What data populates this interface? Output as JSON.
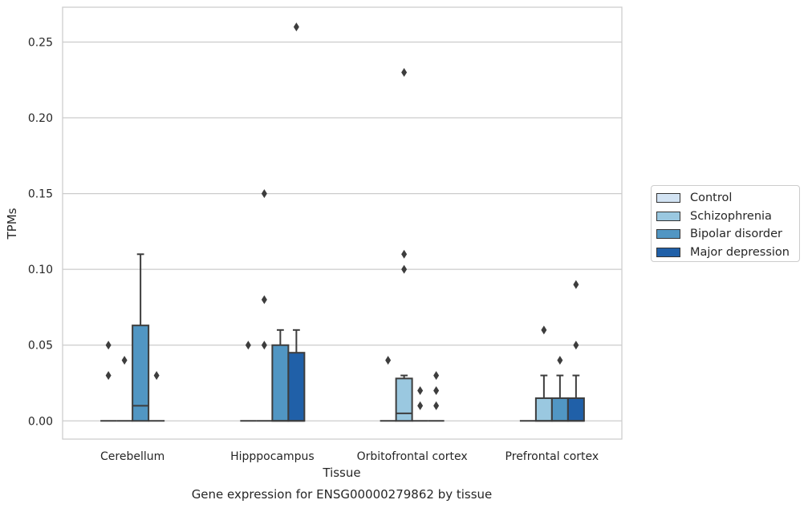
{
  "chart_data": {
    "type": "boxplot",
    "title": "Gene expression for ENSG00000279862 by tissue",
    "xlabel": "Tissue",
    "ylabel": "TPMs",
    "ylim": [
      -0.012,
      0.273
    ],
    "yticks": [
      "0.00",
      "0.05",
      "0.10",
      "0.15",
      "0.20",
      "0.25"
    ],
    "grid": "horizontal",
    "legend_position": "right",
    "categories": [
      "Cerebellum",
      "Hipppocampus",
      "Orbitofrontal cortex",
      "Prefrontal cortex"
    ],
    "series": [
      {
        "name": "Control",
        "color": "#d2e3f3",
        "boxes": [
          {
            "q1": 0,
            "median": 0,
            "q3": 0,
            "whisker_low": 0,
            "whisker_high": 0,
            "outliers": [
              0.03,
              0.05
            ]
          },
          {
            "q1": 0,
            "median": 0,
            "q3": 0,
            "whisker_low": 0,
            "whisker_high": 0,
            "outliers": [
              0.05
            ]
          },
          {
            "q1": 0,
            "median": 0,
            "q3": 0,
            "whisker_low": 0,
            "whisker_high": 0,
            "outliers": [
              0.04
            ]
          },
          {
            "q1": 0,
            "median": 0,
            "q3": 0,
            "whisker_low": 0,
            "whisker_high": 0,
            "outliers": []
          }
        ]
      },
      {
        "name": "Schizophrenia",
        "color": "#9ac8e0",
        "boxes": [
          {
            "q1": 0,
            "median": 0,
            "q3": 0,
            "whisker_low": 0,
            "whisker_high": 0,
            "outliers": [
              0.04
            ]
          },
          {
            "q1": 0,
            "median": 0,
            "q3": 0,
            "whisker_low": 0,
            "whisker_high": 0,
            "outliers": [
              0.05,
              0.08,
              0.15
            ]
          },
          {
            "q1": 0,
            "median": 0.005,
            "q3": 0.028,
            "whisker_low": 0,
            "whisker_high": 0.03,
            "outliers": [
              0.1,
              0.11,
              0.23
            ]
          },
          {
            "q1": 0,
            "median": 0,
            "q3": 0.015,
            "whisker_low": 0,
            "whisker_high": 0.03,
            "outliers": [
              0.06
            ]
          }
        ]
      },
      {
        "name": "Bipolar disorder",
        "color": "#5196c3",
        "boxes": [
          {
            "q1": 0,
            "median": 0.01,
            "q3": 0.063,
            "whisker_low": 0,
            "whisker_high": 0.11,
            "outliers": []
          },
          {
            "q1": 0,
            "median": 0,
            "q3": 0.05,
            "whisker_low": 0,
            "whisker_high": 0.06,
            "outliers": []
          },
          {
            "q1": 0,
            "median": 0,
            "q3": 0,
            "whisker_low": 0,
            "whisker_high": 0,
            "outliers": [
              0.01,
              0.02
            ]
          },
          {
            "q1": 0,
            "median": 0,
            "q3": 0.015,
            "whisker_low": 0,
            "whisker_high": 0.03,
            "outliers": [
              0.04
            ]
          }
        ]
      },
      {
        "name": "Major depression",
        "color": "#2060a8",
        "boxes": [
          {
            "q1": 0,
            "median": 0,
            "q3": 0,
            "whisker_low": 0,
            "whisker_high": 0,
            "outliers": [
              0.03
            ]
          },
          {
            "q1": 0,
            "median": 0,
            "q3": 0.045,
            "whisker_low": 0,
            "whisker_high": 0.06,
            "outliers": [
              0.26
            ]
          },
          {
            "q1": 0,
            "median": 0,
            "q3": 0,
            "whisker_low": 0,
            "whisker_high": 0,
            "outliers": [
              0.01,
              0.02,
              0.03
            ]
          },
          {
            "q1": 0,
            "median": 0,
            "q3": 0.015,
            "whisker_low": 0,
            "whisker_high": 0.03,
            "outliers": [
              0.05,
              0.09
            ]
          }
        ]
      }
    ]
  }
}
